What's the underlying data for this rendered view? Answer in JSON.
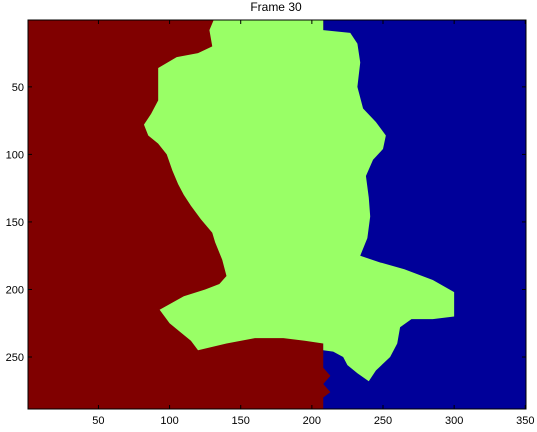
{
  "title": "Frame 30",
  "chart_data": {
    "type": "heatmap",
    "title": "Frame 30",
    "xlabel": "",
    "ylabel": "",
    "xlim": [
      0.5,
      350.5
    ],
    "ylim": [
      288.5,
      0.5
    ],
    "y_axis_reversed": true,
    "x_ticks": [
      50,
      100,
      150,
      200,
      250,
      300,
      350
    ],
    "y_ticks": [
      50,
      100,
      150,
      200,
      250
    ],
    "grid": false,
    "legend": "none",
    "background_color": "#800000",
    "regions": [
      {
        "label": "red",
        "color": "#800000",
        "polygon": [
          [
            0.5,
            0.5
          ],
          [
            350.5,
            0.5
          ],
          [
            350.5,
            288.5
          ],
          [
            0.5,
            288.5
          ]
        ]
      },
      {
        "label": "blue",
        "color": "#000099",
        "polygon": [
          [
            208,
            0.5
          ],
          [
            350.5,
            0.5
          ],
          [
            350.5,
            288.5
          ],
          [
            208,
            288.5
          ],
          [
            208,
            280
          ],
          [
            213,
            276
          ],
          [
            208,
            270
          ],
          [
            213,
            264
          ],
          [
            208,
            258
          ],
          [
            208,
            240
          ]
        ]
      },
      {
        "label": "green",
        "color": "#99ff66",
        "polygon": [
          [
            131,
            0.5
          ],
          [
            208,
            0.5
          ],
          [
            208,
            8
          ],
          [
            227,
            10
          ],
          [
            232,
            18
          ],
          [
            234,
            32
          ],
          [
            232,
            50
          ],
          [
            236,
            66
          ],
          [
            245,
            76
          ],
          [
            252,
            86
          ],
          [
            250,
            96
          ],
          [
            243,
            104
          ],
          [
            238,
            116
          ],
          [
            240,
            132
          ],
          [
            241,
            146
          ],
          [
            239,
            162
          ],
          [
            234,
            175
          ],
          [
            248,
            180
          ],
          [
            265,
            185
          ],
          [
            285,
            193
          ],
          [
            300,
            202
          ],
          [
            300,
            220
          ],
          [
            285,
            222
          ],
          [
            270,
            222
          ],
          [
            262,
            228
          ],
          [
            260,
            240
          ],
          [
            255,
            250
          ],
          [
            245,
            260
          ],
          [
            240,
            268
          ],
          [
            232,
            262
          ],
          [
            225,
            256
          ],
          [
            222,
            250
          ],
          [
            215,
            246
          ],
          [
            208,
            245
          ],
          [
            208,
            240
          ],
          [
            195,
            238
          ],
          [
            180,
            236
          ],
          [
            160,
            236
          ],
          [
            140,
            240
          ],
          [
            120,
            245
          ],
          [
            115,
            238
          ],
          [
            108,
            232
          ],
          [
            100,
            225
          ],
          [
            93,
            215
          ],
          [
            110,
            205
          ],
          [
            125,
            200
          ],
          [
            135,
            196
          ],
          [
            140,
            190
          ],
          [
            137,
            178
          ],
          [
            132,
            165
          ],
          [
            130,
            158
          ],
          [
            122,
            148
          ],
          [
            115,
            138
          ],
          [
            110,
            130
          ],
          [
            106,
            122
          ],
          [
            102,
            112
          ],
          [
            98,
            100
          ],
          [
            92,
            92
          ],
          [
            85,
            86
          ],
          [
            82,
            78
          ],
          [
            87,
            70
          ],
          [
            92,
            60
          ],
          [
            92,
            50
          ],
          [
            92,
            36
          ],
          [
            105,
            28
          ],
          [
            120,
            25
          ],
          [
            130,
            20
          ],
          [
            128,
            8
          ]
        ]
      }
    ]
  }
}
